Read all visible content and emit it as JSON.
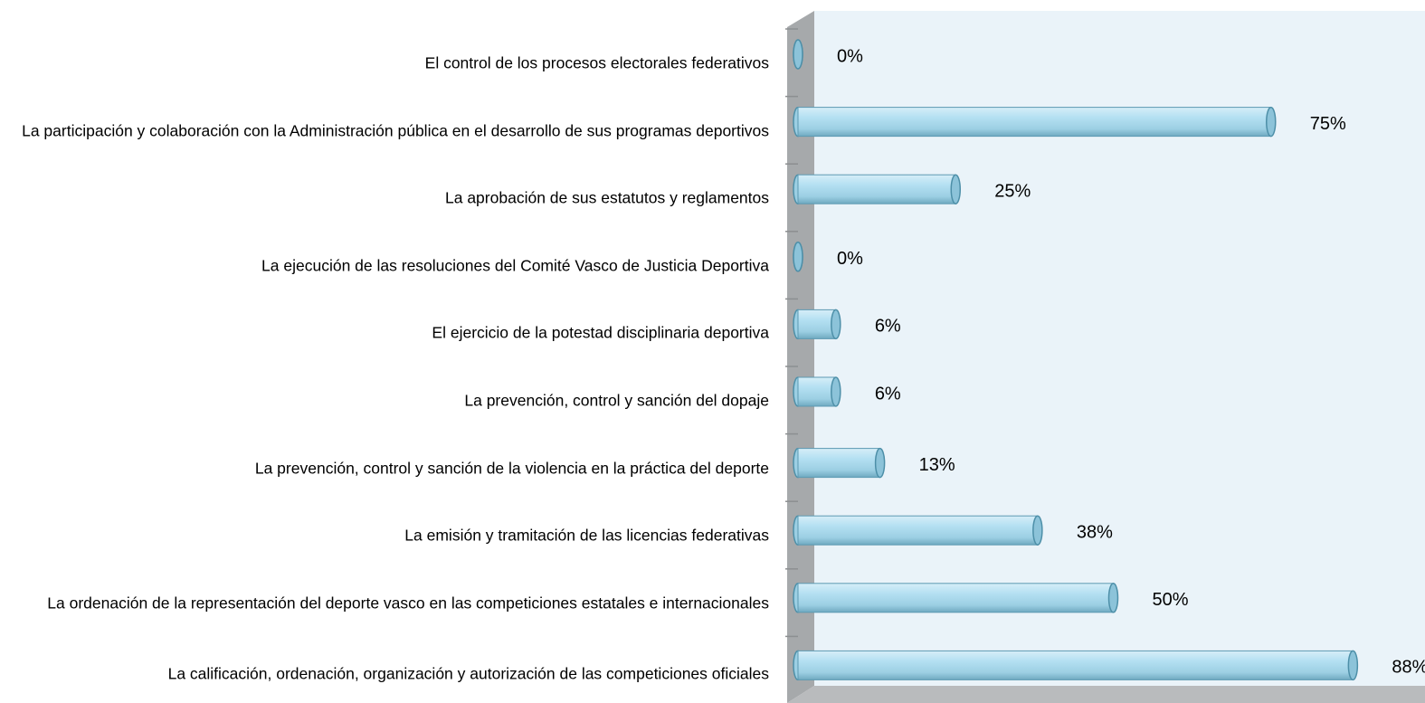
{
  "chart_data": {
    "type": "bar",
    "orientation": "horizontal",
    "categories": [
      "El control de los procesos electorales federativos",
      "La participación y colaboración con la Administración pública en el desarrollo de sus programas deportivos",
      "La aprobación de sus estatutos y reglamentos",
      "La ejecución de las resoluciones del Comité Vasco de Justicia Deportiva",
      "El ejercicio de la potestad disciplinaria deportiva",
      "La prevención, control y sanción del dopaje",
      "La prevención, control y sanción de la violencia en la práctica del deporte",
      "La emisión y tramitación de las licencias federativas",
      "La ordenación de la representación del deporte vasco en las competiciones estatales e internacionales",
      "La calificación, ordenación, organización y autorización de las competiciones oficiales"
    ],
    "values": [
      0,
      75,
      25,
      0,
      6,
      6,
      13,
      38,
      50,
      88
    ],
    "value_labels": [
      "0%",
      "75%",
      "25%",
      "0%",
      "6%",
      "6%",
      "13%",
      "38%",
      "50%",
      "88%"
    ],
    "color": "#a8d8ec"
  }
}
